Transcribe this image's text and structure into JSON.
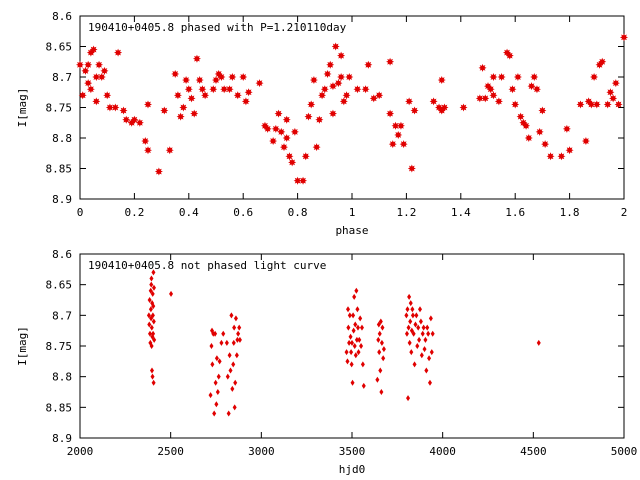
{
  "chart_data": [
    {
      "type": "scatter",
      "title": "190410+0405.8 phased with P=1.210110day",
      "xlabel": "phase",
      "ylabel": "I[mag]",
      "xlim": [
        0,
        2
      ],
      "ylim": [
        8.9,
        8.6
      ],
      "y_inverted": true,
      "grid": false,
      "marker": "star",
      "color": "#e00000",
      "x_ticks": [
        "0",
        "0.2",
        "0.4",
        "0.6",
        "0.8",
        "1",
        "1.2",
        "1.4",
        "1.6",
        "1.8",
        "2"
      ],
      "y_ticks": [
        "8.6",
        "8.65",
        "8.7",
        "8.75",
        "8.8",
        "8.85",
        "8.9"
      ],
      "points": [
        [
          0.0,
          8.68
        ],
        [
          0.01,
          8.73
        ],
        [
          0.02,
          8.69
        ],
        [
          0.03,
          8.71
        ],
        [
          0.03,
          8.68
        ],
        [
          0.04,
          8.66
        ],
        [
          0.04,
          8.72
        ],
        [
          0.05,
          8.655
        ],
        [
          0.06,
          8.7
        ],
        [
          0.06,
          8.74
        ],
        [
          0.07,
          8.68
        ],
        [
          0.08,
          8.7
        ],
        [
          0.09,
          8.69
        ],
        [
          0.1,
          8.73
        ],
        [
          0.11,
          8.75
        ],
        [
          0.13,
          8.75
        ],
        [
          0.14,
          8.66
        ],
        [
          0.16,
          8.755
        ],
        [
          0.17,
          8.77
        ],
        [
          0.19,
          8.775
        ],
        [
          0.2,
          8.77
        ],
        [
          0.22,
          8.775
        ],
        [
          0.24,
          8.805
        ],
        [
          0.25,
          8.82
        ],
        [
          0.25,
          8.745
        ],
        [
          0.29,
          8.855
        ],
        [
          0.31,
          8.755
        ],
        [
          0.33,
          8.82
        ],
        [
          0.35,
          8.695
        ],
        [
          0.36,
          8.73
        ],
        [
          0.37,
          8.765
        ],
        [
          0.38,
          8.75
        ],
        [
          0.39,
          8.705
        ],
        [
          0.4,
          8.72
        ],
        [
          0.41,
          8.735
        ],
        [
          0.42,
          8.76
        ],
        [
          0.43,
          8.67
        ],
        [
          0.44,
          8.705
        ],
        [
          0.45,
          8.72
        ],
        [
          0.46,
          8.73
        ],
        [
          0.49,
          8.72
        ],
        [
          0.5,
          8.705
        ],
        [
          0.51,
          8.695
        ],
        [
          0.52,
          8.7
        ],
        [
          0.53,
          8.72
        ],
        [
          0.55,
          8.72
        ],
        [
          0.56,
          8.7
        ],
        [
          0.58,
          8.73
        ],
        [
          0.6,
          8.7
        ],
        [
          0.61,
          8.74
        ],
        [
          0.62,
          8.725
        ],
        [
          0.66,
          8.71
        ],
        [
          0.68,
          8.78
        ],
        [
          0.69,
          8.785
        ],
        [
          0.71,
          8.805
        ],
        [
          0.72,
          8.785
        ],
        [
          0.73,
          8.76
        ],
        [
          0.74,
          8.79
        ],
        [
          0.75,
          8.815
        ],
        [
          0.76,
          8.77
        ],
        [
          0.76,
          8.8
        ],
        [
          0.77,
          8.83
        ],
        [
          0.78,
          8.84
        ],
        [
          0.79,
          8.79
        ],
        [
          0.8,
          8.87
        ],
        [
          0.82,
          8.87
        ],
        [
          0.83,
          8.83
        ],
        [
          0.84,
          8.765
        ],
        [
          0.85,
          8.745
        ],
        [
          0.86,
          8.705
        ],
        [
          0.87,
          8.815
        ],
        [
          0.88,
          8.77
        ],
        [
          0.89,
          8.73
        ],
        [
          0.9,
          8.72
        ],
        [
          0.91,
          8.695
        ],
        [
          0.92,
          8.68
        ],
        [
          0.93,
          8.715
        ],
        [
          0.93,
          8.76
        ],
        [
          0.94,
          8.65
        ],
        [
          0.95,
          8.71
        ],
        [
          0.96,
          8.7
        ],
        [
          0.96,
          8.665
        ],
        [
          0.97,
          8.74
        ],
        [
          0.98,
          8.73
        ],
        [
          0.99,
          8.7
        ],
        [
          1.02,
          8.72
        ],
        [
          1.05,
          8.72
        ],
        [
          1.06,
          8.68
        ],
        [
          1.08,
          8.735
        ],
        [
          1.1,
          8.73
        ],
        [
          1.14,
          8.76
        ],
        [
          1.14,
          8.675
        ],
        [
          1.15,
          8.81
        ],
        [
          1.16,
          8.78
        ],
        [
          1.17,
          8.795
        ],
        [
          1.18,
          8.78
        ],
        [
          1.19,
          8.81
        ],
        [
          1.21,
          8.74
        ],
        [
          1.22,
          8.85
        ],
        [
          1.23,
          8.755
        ],
        [
          1.3,
          8.74
        ],
        [
          1.32,
          8.75
        ],
        [
          1.33,
          8.705
        ],
        [
          1.33,
          8.755
        ],
        [
          1.34,
          8.75
        ],
        [
          1.41,
          8.75
        ],
        [
          1.47,
          8.735
        ],
        [
          1.48,
          8.685
        ],
        [
          1.49,
          8.735
        ],
        [
          1.5,
          8.715
        ],
        [
          1.51,
          8.72
        ],
        [
          1.52,
          8.73
        ],
        [
          1.52,
          8.7
        ],
        [
          1.54,
          8.74
        ],
        [
          1.55,
          8.7
        ],
        [
          1.57,
          8.66
        ],
        [
          1.58,
          8.665
        ],
        [
          1.59,
          8.72
        ],
        [
          1.6,
          8.745
        ],
        [
          1.61,
          8.7
        ],
        [
          1.62,
          8.765
        ],
        [
          1.63,
          8.775
        ],
        [
          1.64,
          8.78
        ],
        [
          1.65,
          8.8
        ],
        [
          1.66,
          8.715
        ],
        [
          1.67,
          8.7
        ],
        [
          1.68,
          8.72
        ],
        [
          1.69,
          8.79
        ],
        [
          1.7,
          8.755
        ],
        [
          1.71,
          8.81
        ],
        [
          1.73,
          8.83
        ],
        [
          1.77,
          8.83
        ],
        [
          1.79,
          8.785
        ],
        [
          1.8,
          8.82
        ],
        [
          1.84,
          8.745
        ],
        [
          1.86,
          8.805
        ],
        [
          1.87,
          8.74
        ],
        [
          1.88,
          8.745
        ],
        [
          1.89,
          8.7
        ],
        [
          1.9,
          8.745
        ],
        [
          1.91,
          8.68
        ],
        [
          1.92,
          8.675
        ],
        [
          1.94,
          8.745
        ],
        [
          1.95,
          8.725
        ],
        [
          1.96,
          8.735
        ],
        [
          1.97,
          8.71
        ],
        [
          1.98,
          8.745
        ],
        [
          2.0,
          8.635
        ]
      ]
    },
    {
      "type": "scatter",
      "title": "190410+0405.8 not phased light curve",
      "xlabel": "hjd0",
      "ylabel": "I[mag]",
      "xlim": [
        2000,
        5000
      ],
      "ylim": [
        8.9,
        8.6
      ],
      "y_inverted": true,
      "grid": false,
      "marker": "diamond",
      "color": "#e00000",
      "x_ticks": [
        "2000",
        "2500",
        "3000",
        "3500",
        "4000",
        "4500",
        "5000"
      ],
      "y_ticks": [
        "8.6",
        "8.65",
        "8.7",
        "8.75",
        "8.8",
        "8.85",
        "8.9"
      ],
      "points": [
        [
          2380,
          8.7
        ],
        [
          2382,
          8.715
        ],
        [
          2384,
          8.675
        ],
        [
          2386,
          8.73
        ],
        [
          2388,
          8.745
        ],
        [
          2390,
          8.66
        ],
        [
          2391,
          8.69
        ],
        [
          2392,
          8.705
        ],
        [
          2393,
          8.65
        ],
        [
          2394,
          8.64
        ],
        [
          2395,
          8.75
        ],
        [
          2396,
          8.72
        ],
        [
          2397,
          8.79
        ],
        [
          2398,
          8.68
        ],
        [
          2399,
          8.735
        ],
        [
          2400,
          8.8
        ],
        [
          2401,
          8.665
        ],
        [
          2402,
          8.7
        ],
        [
          2403,
          8.73
        ],
        [
          2404,
          8.685
        ],
        [
          2405,
          8.63
        ],
        [
          2406,
          8.81
        ],
        [
          2407,
          8.71
        ],
        [
          2408,
          8.655
        ],
        [
          2409,
          8.74
        ],
        [
          2502,
          8.665
        ],
        [
          2720,
          8.83
        ],
        [
          2725,
          8.75
        ],
        [
          2728,
          8.725
        ],
        [
          2730,
          8.78
        ],
        [
          2735,
          8.73
        ],
        [
          2740,
          8.86
        ],
        [
          2745,
          8.73
        ],
        [
          2748,
          8.81
        ],
        [
          2752,
          8.845
        ],
        [
          2755,
          8.77
        ],
        [
          2760,
          8.825
        ],
        [
          2765,
          8.8
        ],
        [
          2770,
          8.775
        ],
        [
          2780,
          8.745
        ],
        [
          2790,
          8.73
        ],
        [
          2810,
          8.745
        ],
        [
          2815,
          8.8
        ],
        [
          2820,
          8.86
        ],
        [
          2825,
          8.765
        ],
        [
          2830,
          8.79
        ],
        [
          2835,
          8.7
        ],
        [
          2840,
          8.82
        ],
        [
          2845,
          8.78
        ],
        [
          2848,
          8.745
        ],
        [
          2850,
          8.72
        ],
        [
          2853,
          8.85
        ],
        [
          2856,
          8.81
        ],
        [
          2860,
          8.705
        ],
        [
          2865,
          8.765
        ],
        [
          2868,
          8.74
        ],
        [
          2872,
          8.73
        ],
        [
          2878,
          8.72
        ],
        [
          2882,
          8.74
        ],
        [
          3470,
          8.76
        ],
        [
          3475,
          8.775
        ],
        [
          3478,
          8.69
        ],
        [
          3480,
          8.72
        ],
        [
          3484,
          8.745
        ],
        [
          3488,
          8.7
        ],
        [
          3492,
          8.735
        ],
        [
          3495,
          8.76
        ],
        [
          3498,
          8.78
        ],
        [
          3500,
          8.745
        ],
        [
          3503,
          8.81
        ],
        [
          3506,
          8.7
        ],
        [
          3509,
          8.725
        ],
        [
          3512,
          8.67
        ],
        [
          3515,
          8.75
        ],
        [
          3518,
          8.715
        ],
        [
          3521,
          8.765
        ],
        [
          3524,
          8.66
        ],
        [
          3527,
          8.74
        ],
        [
          3530,
          8.69
        ],
        [
          3533,
          8.72
        ],
        [
          3536,
          8.76
        ],
        [
          3540,
          8.74
        ],
        [
          3545,
          8.705
        ],
        [
          3550,
          8.75
        ],
        [
          3555,
          8.72
        ],
        [
          3560,
          8.78
        ],
        [
          3565,
          8.815
        ],
        [
          3640,
          8.805
        ],
        [
          3645,
          8.74
        ],
        [
          3648,
          8.715
        ],
        [
          3650,
          8.76
        ],
        [
          3653,
          8.73
        ],
        [
          3656,
          8.79
        ],
        [
          3659,
          8.71
        ],
        [
          3662,
          8.825
        ],
        [
          3665,
          8.745
        ],
        [
          3668,
          8.72
        ],
        [
          3672,
          8.77
        ],
        [
          3676,
          8.755
        ],
        [
          3800,
          8.7
        ],
        [
          3803,
          8.73
        ],
        [
          3806,
          8.69
        ],
        [
          3809,
          8.835
        ],
        [
          3812,
          8.72
        ],
        [
          3815,
          8.67
        ],
        [
          3818,
          8.745
        ],
        [
          3821,
          8.71
        ],
        [
          3824,
          8.68
        ],
        [
          3827,
          8.76
        ],
        [
          3830,
          8.725
        ],
        [
          3833,
          8.69
        ],
        [
          3836,
          8.7
        ],
        [
          3840,
          8.73
        ],
        [
          3845,
          8.78
        ],
        [
          3850,
          8.715
        ],
        [
          3855,
          8.7
        ],
        [
          3860,
          8.75
        ],
        [
          3865,
          8.72
        ],
        [
          3870,
          8.74
        ],
        [
          3875,
          8.69
        ],
        [
          3880,
          8.71
        ],
        [
          3885,
          8.765
        ],
        [
          3890,
          8.73
        ],
        [
          3895,
          8.72
        ],
        [
          3900,
          8.755
        ],
        [
          3905,
          8.74
        ],
        [
          3910,
          8.79
        ],
        [
          3915,
          8.72
        ],
        [
          3920,
          8.73
        ],
        [
          3925,
          8.77
        ],
        [
          3930,
          8.81
        ],
        [
          3935,
          8.705
        ],
        [
          3940,
          8.76
        ],
        [
          3945,
          8.73
        ],
        [
          4530,
          8.745
        ]
      ]
    }
  ]
}
